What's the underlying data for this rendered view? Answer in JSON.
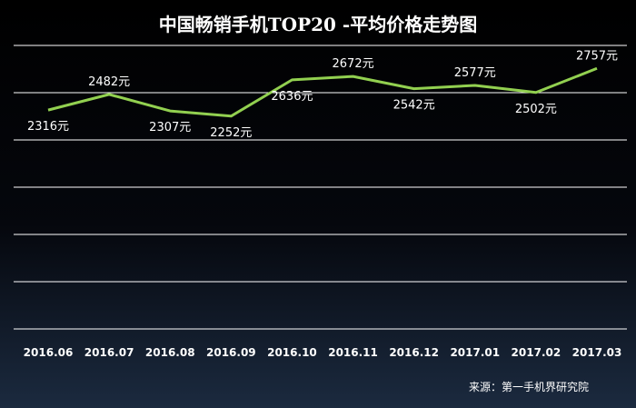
{
  "chart_data": {
    "type": "line",
    "title": "中国畅销手机TOP20 -平均价格走势图",
    "categories": [
      "2016.06",
      "2016.07",
      "2016.08",
      "2016.09",
      "2016.10",
      "2016.11",
      "2016.12",
      "2017.01",
      "2017.02",
      "2017.03"
    ],
    "series": [
      {
        "values": [
          2316,
          2482,
          2307,
          2252,
          2636,
          2672,
          2542,
          2577,
          2502,
          2757
        ],
        "labels": [
          "2316元",
          "2482元",
          "2307元",
          "2252元",
          "2636元",
          "2672元",
          "2542元",
          "2577元",
          "2502元",
          "2757元"
        ]
      }
    ],
    "ylim": [
      0,
      3000
    ],
    "grid": true,
    "line_color": "#92d050",
    "source": "来源：第一手机界研究院"
  }
}
